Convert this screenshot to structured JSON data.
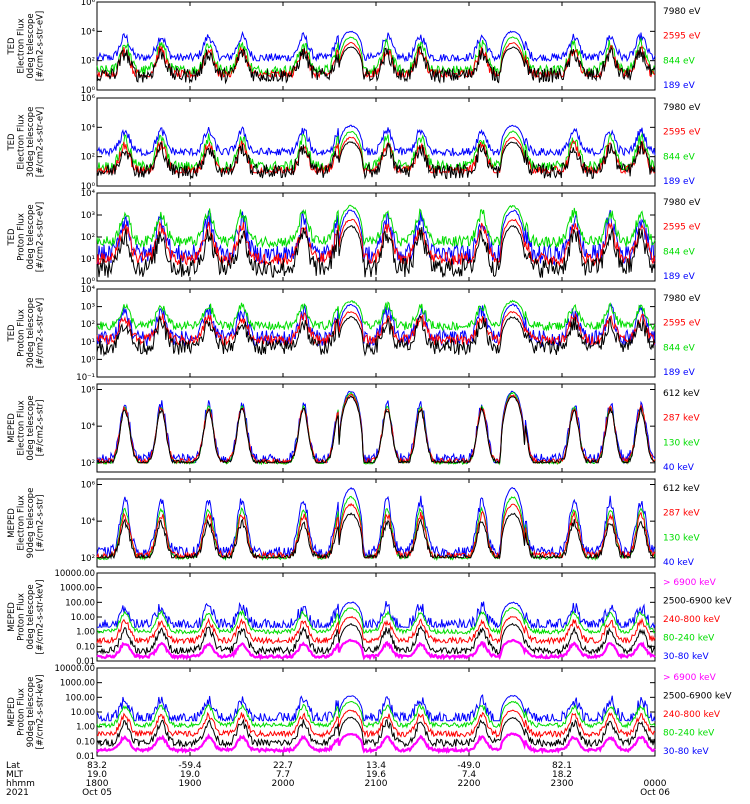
{
  "figure": {
    "x_axis": {
      "row_labels": [
        "Lat",
        "MLT",
        "hhmm",
        "2021"
      ],
      "columns": [
        {
          "lat": "83.2",
          "mlt": "19.0",
          "hhmm": "1800",
          "date": "Oct 05"
        },
        {
          "lat": "-59.4",
          "mlt": "19.0",
          "hhmm": "1900",
          "date": ""
        },
        {
          "lat": "22.7",
          "mlt": "7.7",
          "hhmm": "2000",
          "date": ""
        },
        {
          "lat": "13.4",
          "mlt": "19.6",
          "hhmm": "2100",
          "date": ""
        },
        {
          "lat": "-49.0",
          "mlt": "7.4",
          "hhmm": "2200",
          "date": ""
        },
        {
          "lat": "82.1",
          "mlt": "18.2",
          "hhmm": "2300",
          "date": ""
        },
        {
          "lat": "",
          "mlt": "",
          "hhmm": "0000",
          "date": "Oct 06"
        }
      ]
    }
  },
  "chart_data": [
    {
      "type": "line",
      "panel": "ted-electron-0deg",
      "ylabel_lines": [
        "TED",
        "Electron Flux",
        "0deg telescope",
        "[#/cm2-s-str-eV]"
      ],
      "yscale": "log",
      "ylim_exp": [
        0,
        6
      ],
      "yticks": [
        {
          "exp": 0,
          "label": "10⁰"
        },
        {
          "exp": 2,
          "label": "10²"
        },
        {
          "exp": 4,
          "label": "10⁴"
        },
        {
          "exp": 6,
          "label": "10⁶"
        }
      ],
      "series": [
        {
          "name": "7980 eV",
          "color": "#000000",
          "base_exp": 1.0,
          "peak_exp": 2.9,
          "noise": 1.0,
          "floor_exp": 0.15
        },
        {
          "name": "2595 eV",
          "color": "#ff0000",
          "base_exp": 1.0,
          "peak_exp": 3.2,
          "noise": 0.7,
          "floor_exp": 0.9
        },
        {
          "name": "844 eV",
          "color": "#00dd00",
          "base_exp": 1.3,
          "peak_exp": 3.6,
          "noise": 0.8,
          "floor_exp": 1.1
        },
        {
          "name": "189 eV",
          "color": "#0000ff",
          "base_exp": 2.2,
          "peak_exp": 4.0,
          "noise": 0.6,
          "floor_exp": 2.0
        }
      ]
    },
    {
      "type": "line",
      "panel": "ted-electron-30deg",
      "ylabel_lines": [
        "TED",
        "Electron Flux",
        "30deg telescope",
        "[#/cm2-s-str-eV]"
      ],
      "yscale": "log",
      "ylim_exp": [
        0,
        6
      ],
      "yticks": [
        {
          "exp": 0,
          "label": "10⁰"
        },
        {
          "exp": 2,
          "label": "10²"
        },
        {
          "exp": 4,
          "label": "10⁴"
        },
        {
          "exp": 6,
          "label": "10⁶"
        }
      ],
      "series": [
        {
          "name": "7980 eV",
          "color": "#000000",
          "base_exp": 1.0,
          "peak_exp": 3.0,
          "noise": 1.0,
          "floor_exp": 0.15
        },
        {
          "name": "2595 eV",
          "color": "#ff0000",
          "base_exp": 1.0,
          "peak_exp": 3.3,
          "noise": 0.7,
          "floor_exp": 0.9
        },
        {
          "name": "844 eV",
          "color": "#00dd00",
          "base_exp": 1.3,
          "peak_exp": 3.7,
          "noise": 0.8,
          "floor_exp": 1.1
        },
        {
          "name": "189 eV",
          "color": "#0000ff",
          "base_exp": 2.3,
          "peak_exp": 4.1,
          "noise": 0.6,
          "floor_exp": 2.1
        }
      ]
    },
    {
      "type": "line",
      "panel": "ted-proton-0deg",
      "ylabel_lines": [
        "TED",
        "Proton Flux",
        "0deg telescope",
        "[#/cm2-s-str-eV]"
      ],
      "yscale": "log",
      "ylim_exp": [
        0,
        4
      ],
      "yticks": [
        {
          "exp": 0,
          "label": "10⁰"
        },
        {
          "exp": 1,
          "label": "10¹"
        },
        {
          "exp": 2,
          "label": "10²"
        },
        {
          "exp": 3,
          "label": "10³"
        },
        {
          "exp": 4,
          "label": "10⁴"
        }
      ],
      "series": [
        {
          "name": "7980 eV",
          "color": "#000000",
          "base_exp": 0.6,
          "peak_exp": 2.5,
          "noise": 0.9,
          "floor_exp": 0.0
        },
        {
          "name": "2595 eV",
          "color": "#ff0000",
          "base_exp": 1.0,
          "peak_exp": 2.8,
          "noise": 0.6,
          "floor_exp": 0.4
        },
        {
          "name": "844 eV",
          "color": "#00dd00",
          "base_exp": 1.8,
          "peak_exp": 3.4,
          "noise": 0.5,
          "floor_exp": 1.2
        },
        {
          "name": "189 eV",
          "color": "#0000ff",
          "base_exp": 1.2,
          "peak_exp": 3.2,
          "noise": 0.9,
          "floor_exp": 0.3
        }
      ]
    },
    {
      "type": "line",
      "panel": "ted-proton-30deg",
      "ylabel_lines": [
        "TED",
        "Proton Flux",
        "30deg telescope",
        "[#/cm2-s-str-eV]"
      ],
      "yscale": "log",
      "ylim_exp": [
        -1,
        4
      ],
      "yticks": [
        {
          "exp": -1,
          "label": "10⁻¹"
        },
        {
          "exp": 0,
          "label": "10⁰"
        },
        {
          "exp": 1,
          "label": "10¹"
        },
        {
          "exp": 2,
          "label": "10²"
        },
        {
          "exp": 3,
          "label": "10³"
        },
        {
          "exp": 4,
          "label": "10⁴"
        }
      ],
      "series": [
        {
          "name": "7980 eV",
          "color": "#000000",
          "base_exp": 0.7,
          "peak_exp": 2.4,
          "noise": 0.9,
          "floor_exp": -0.5
        },
        {
          "name": "2595 eV",
          "color": "#ff0000",
          "base_exp": 1.1,
          "peak_exp": 2.7,
          "noise": 0.6,
          "floor_exp": 0.3
        },
        {
          "name": "844 eV",
          "color": "#00dd00",
          "base_exp": 1.9,
          "peak_exp": 3.3,
          "noise": 0.5,
          "floor_exp": 1.2
        },
        {
          "name": "189 eV",
          "color": "#0000ff",
          "base_exp": 1.2,
          "peak_exp": 3.1,
          "noise": 0.9,
          "floor_exp": 0.2
        }
      ]
    },
    {
      "type": "line",
      "panel": "mepeD-electron-0deg",
      "ylabel_lines": [
        "MEPED",
        "Electron Flux",
        "0deg telescope",
        "[#/cm2-s-str]"
      ],
      "yscale": "log",
      "ylim_exp": [
        1.5,
        6.3
      ],
      "yticks": [
        {
          "exp": 2,
          "label": "10²"
        },
        {
          "exp": 4,
          "label": "10⁴"
        },
        {
          "exp": 6,
          "label": "10⁶"
        }
      ],
      "series": [
        {
          "name": "612 keV",
          "color": "#000000",
          "base_exp": 2.0,
          "peak_exp": 5.6,
          "noise": 0.3,
          "floor_exp": 2.0
        },
        {
          "name": "287 keV",
          "color": "#ff0000",
          "base_exp": 2.1,
          "peak_exp": 5.7,
          "noise": 0.3,
          "floor_exp": 2.0
        },
        {
          "name": "130 keV",
          "color": "#00dd00",
          "base_exp": 2.0,
          "peak_exp": 5.8,
          "noise": 0.15,
          "floor_exp": 1.9
        },
        {
          "name": "40 keV",
          "color": "#0000ff",
          "base_exp": 2.2,
          "peak_exp": 5.9,
          "noise": 0.6,
          "floor_exp": 2.0
        }
      ]
    },
    {
      "type": "line",
      "panel": "mepeD-electron-90deg",
      "ylabel_lines": [
        "MEPED",
        "Electron Flux",
        "90deg telescope",
        "[#/cm2-s-str]"
      ],
      "yscale": "log",
      "ylim_exp": [
        1.5,
        6.3
      ],
      "yticks": [
        {
          "exp": 2,
          "label": "10²"
        },
        {
          "exp": 4,
          "label": "10⁴"
        },
        {
          "exp": 6,
          "label": "10⁶"
        }
      ],
      "series": [
        {
          "name": "612 keV",
          "color": "#000000",
          "base_exp": 2.0,
          "peak_exp": 4.4,
          "noise": 0.4,
          "floor_exp": 2.0
        },
        {
          "name": "287 keV",
          "color": "#ff0000",
          "base_exp": 2.1,
          "peak_exp": 4.9,
          "noise": 0.4,
          "floor_exp": 2.0
        },
        {
          "name": "130 keV",
          "color": "#00dd00",
          "base_exp": 2.0,
          "peak_exp": 5.3,
          "noise": 0.2,
          "floor_exp": 1.9
        },
        {
          "name": "40 keV",
          "color": "#0000ff",
          "base_exp": 2.3,
          "peak_exp": 5.8,
          "noise": 0.6,
          "floor_exp": 2.0
        }
      ]
    },
    {
      "type": "line",
      "panel": "mepeD-proton-0deg",
      "ylabel_lines": [
        "MEPED",
        "Proton Flux",
        "0deg telescope",
        "[#/cm2-s-str-keV]"
      ],
      "yscale": "log",
      "ylim_exp": [
        -2,
        4
      ],
      "yticks": [
        {
          "exp": -2,
          "label": "0.01"
        },
        {
          "exp": -1,
          "label": "0.10"
        },
        {
          "exp": 0,
          "label": "1.00"
        },
        {
          "exp": 1,
          "label": "10.00"
        },
        {
          "exp": 2,
          "label": "100.00"
        },
        {
          "exp": 3,
          "label": "1000.00"
        },
        {
          "exp": 4,
          "label": "10000.00"
        }
      ],
      "series": [
        {
          "name": "> 6900 keV",
          "color": "#ff00ff",
          "base_exp": -1.7,
          "peak_exp": -0.6,
          "noise": 0.2,
          "floor_exp": -1.9
        },
        {
          "name": "2500-6900 keV",
          "color": "#000000",
          "base_exp": -1.3,
          "peak_exp": 0.5,
          "noise": 0.5,
          "floor_exp": -1.9
        },
        {
          "name": "240-800 keV",
          "color": "#ff0000",
          "base_exp": -0.6,
          "peak_exp": 1.0,
          "noise": 0.4,
          "floor_exp": -1.0
        },
        {
          "name": "80-240 keV",
          "color": "#00dd00",
          "base_exp": 0.0,
          "peak_exp": 1.6,
          "noise": 0.3,
          "floor_exp": -0.2
        },
        {
          "name": "30-80 keV",
          "color": "#0000ff",
          "base_exp": 0.4,
          "peak_exp": 2.0,
          "noise": 0.9,
          "floor_exp": 0.3
        }
      ]
    },
    {
      "type": "line",
      "panel": "mepeD-proton-90deg",
      "ylabel_lines": [
        "MEPED",
        "Proton Flux",
        "90deg telescope",
        "[#/cm2-s-str-keV]"
      ],
      "yscale": "log",
      "ylim_exp": [
        -2,
        4
      ],
      "yticks": [
        {
          "exp": -2,
          "label": "0.01"
        },
        {
          "exp": -1,
          "label": "0.10"
        },
        {
          "exp": 0,
          "label": "1.00"
        },
        {
          "exp": 1,
          "label": "10.00"
        },
        {
          "exp": 2,
          "label": "100.00"
        },
        {
          "exp": 3,
          "label": "1000.00"
        },
        {
          "exp": 4,
          "label": "10000.00"
        }
      ],
      "series": [
        {
          "name": "> 6900 keV",
          "color": "#ff00ff",
          "base_exp": -1.6,
          "peak_exp": -0.5,
          "noise": 0.2,
          "floor_exp": -1.9
        },
        {
          "name": "2500-6900 keV",
          "color": "#000000",
          "base_exp": -1.1,
          "peak_exp": 0.6,
          "noise": 0.5,
          "floor_exp": -1.8
        },
        {
          "name": "240-800 keV",
          "color": "#ff0000",
          "base_exp": -0.5,
          "peak_exp": 1.1,
          "noise": 0.4,
          "floor_exp": -0.9
        },
        {
          "name": "80-240 keV",
          "color": "#00dd00",
          "base_exp": 0.1,
          "peak_exp": 1.7,
          "noise": 0.3,
          "floor_exp": -0.1
        },
        {
          "name": "30-80 keV",
          "color": "#0000ff",
          "base_exp": 0.5,
          "peak_exp": 2.1,
          "noise": 0.9,
          "floor_exp": 0.4
        }
      ]
    }
  ]
}
